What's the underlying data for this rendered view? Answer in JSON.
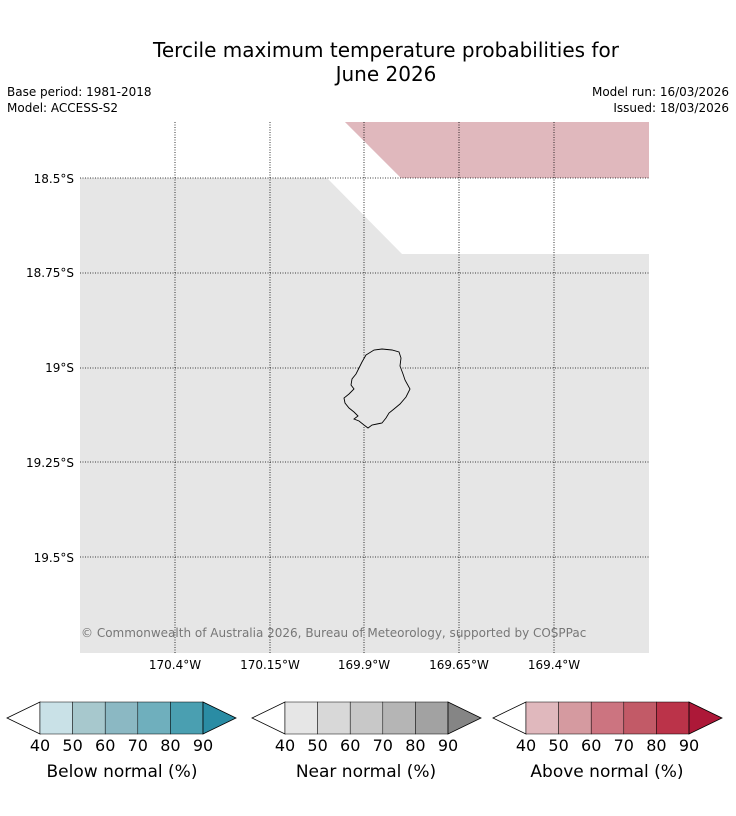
{
  "header": {
    "title_line1": "Tercile maximum temperature probabilities for",
    "title_line2": "June 2026",
    "base_period": "Base period: 1981-2018",
    "model": "Model: ACCESS-S2",
    "model_run": "Model run: 16/03/2026",
    "issued": "Issued: 18/03/2026"
  },
  "map": {
    "latitude_labels": [
      "18.5°S",
      "18.75°S",
      "19°S",
      "19.25°S",
      "19.5°S"
    ],
    "longitude_labels": [
      "170.4°W",
      "170.15°W",
      "169.9°W",
      "169.65°W",
      "169.4°W"
    ],
    "copyright": "© Commonwealth of Australia 2026, Bureau of Meteorology, supported by COSPPac",
    "colors": {
      "near_normal_region": "#e6e6e6",
      "above_normal_region": "#e0b8bd",
      "no_signal": "#ffffff"
    }
  },
  "legends": {
    "below": {
      "title": "Below normal (%)",
      "ticks": [
        "40",
        "50",
        "60",
        "70",
        "80",
        "90"
      ],
      "colors": [
        "#c9e1e7",
        "#a7c8cd",
        "#8bb8c3",
        "#6fafbd",
        "#4a9fb1",
        "#2a8ca4"
      ]
    },
    "near": {
      "title": "Near normal (%)",
      "ticks": [
        "40",
        "50",
        "60",
        "70",
        "80",
        "90"
      ],
      "colors": [
        "#e6e6e6",
        "#d8d8d8",
        "#c8c8c8",
        "#b5b5b5",
        "#a2a2a2",
        "#858585"
      ]
    },
    "above": {
      "title": "Above normal (%)",
      "ticks": [
        "40",
        "50",
        "60",
        "70",
        "80",
        "90"
      ],
      "colors": [
        "#e0b8bd",
        "#d59aa0",
        "#cc7480",
        "#c25a67",
        "#bb3349",
        "#ad1838"
      ]
    }
  }
}
